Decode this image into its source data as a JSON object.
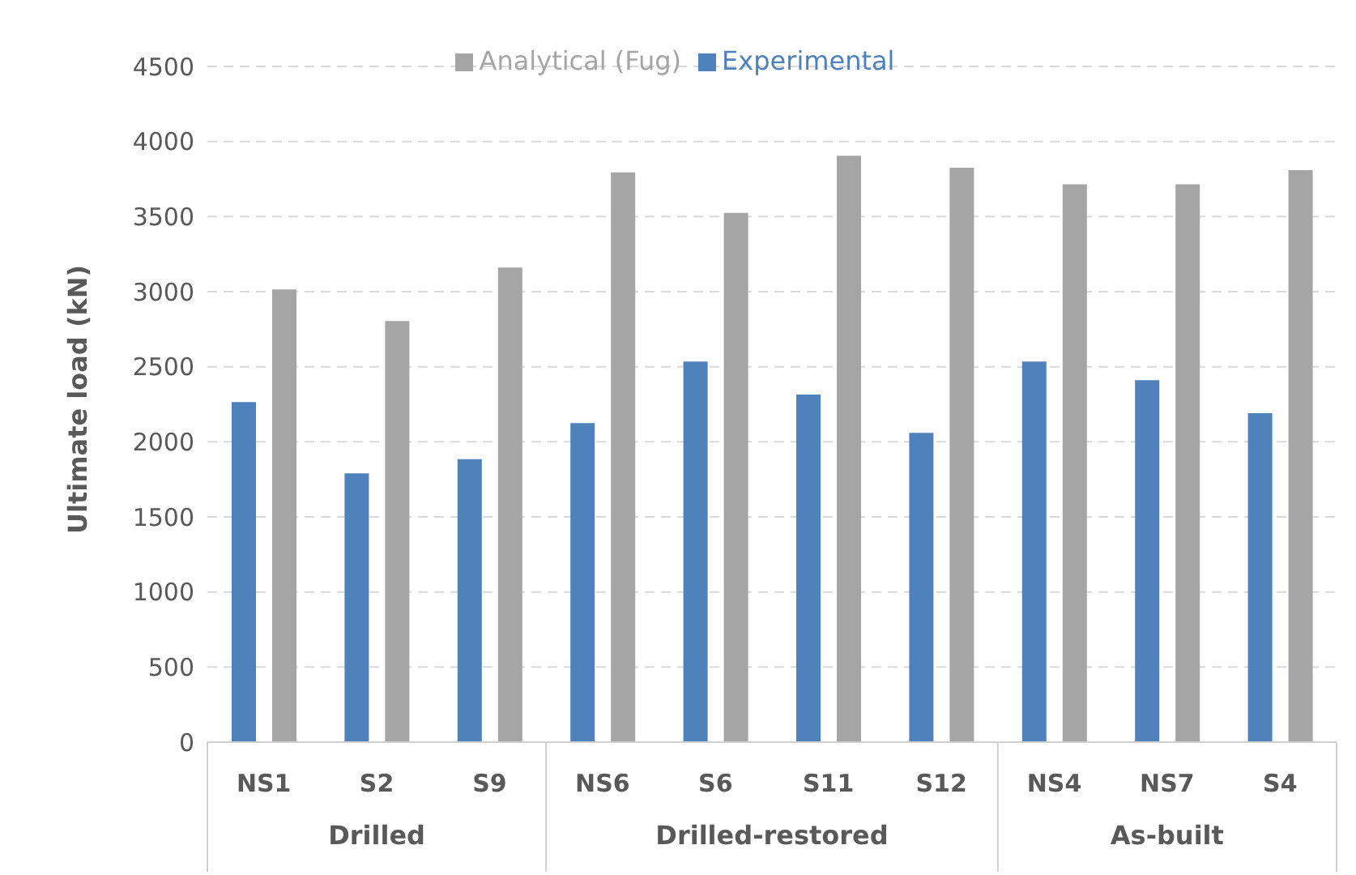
{
  "chart_data": {
    "type": "bar",
    "ylabel": "Ultimate load (kN)",
    "categories": [
      "NS1",
      "S2",
      "S9",
      "NS6",
      "S6",
      "S11",
      "S12",
      "NS4",
      "NS7",
      "S4"
    ],
    "series": [
      {
        "name": "Experimental",
        "color": "#4f81bd",
        "values": [
          2265,
          1790,
          1885,
          2125,
          2535,
          2315,
          2060,
          2535,
          2410,
          2190
        ]
      },
      {
        "name": "Analytical (Fug)",
        "color": "#a5a5a5",
        "values": [
          3015,
          2805,
          3160,
          3795,
          3525,
          3905,
          3825,
          3715,
          3715,
          3810
        ]
      }
    ],
    "annotations": [
      "Drilled",
      "Drilled-restored",
      "As-built"
    ],
    "ylim": [
      0,
      4500
    ],
    "yticks": [
      0,
      500,
      1000,
      1500,
      2000,
      2500,
      3000,
      3500,
      4000,
      4500
    ],
    "grid": "y",
    "legend": "top"
  }
}
